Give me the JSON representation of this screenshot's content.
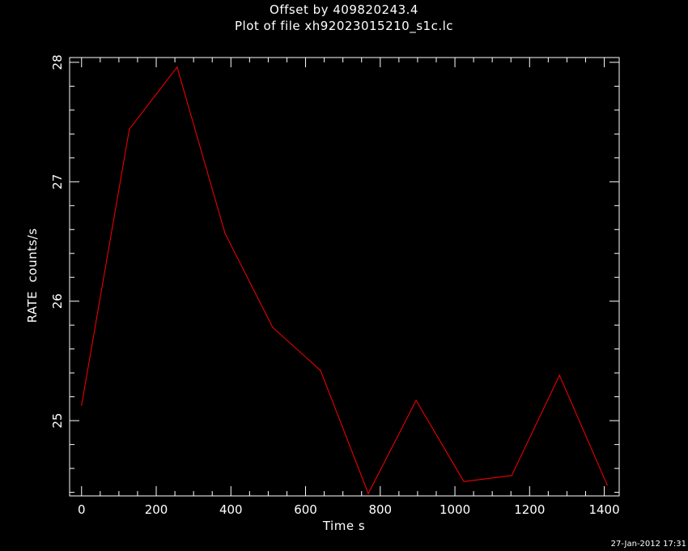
{
  "title_line1": "Offset by 409820243.4",
  "title_line2": "Plot of file xh92023015210_s1c.lc",
  "timestamp": "27-Jan-2012 17:31",
  "colors": {
    "background": "#000000",
    "axes": "#ffffff",
    "series": "#ff0000"
  },
  "chart_data": {
    "type": "line",
    "xlabel": "Time  s",
    "ylabel": "RATE  counts/s",
    "xlim": [
      -32,
      1440
    ],
    "ylim": [
      24.37,
      28.04
    ],
    "xticks": [
      0,
      200,
      400,
      600,
      800,
      1000,
      1200,
      1400
    ],
    "yticks": [
      25,
      26,
      27,
      28
    ],
    "grid": false,
    "x": [
      0,
      128,
      256,
      384,
      512,
      640,
      768,
      896,
      1024,
      1152,
      1280,
      1408
    ],
    "y": [
      25.13,
      27.44,
      27.96,
      26.57,
      25.78,
      25.42,
      24.39,
      25.17,
      24.49,
      24.54,
      25.38,
      24.46
    ]
  }
}
